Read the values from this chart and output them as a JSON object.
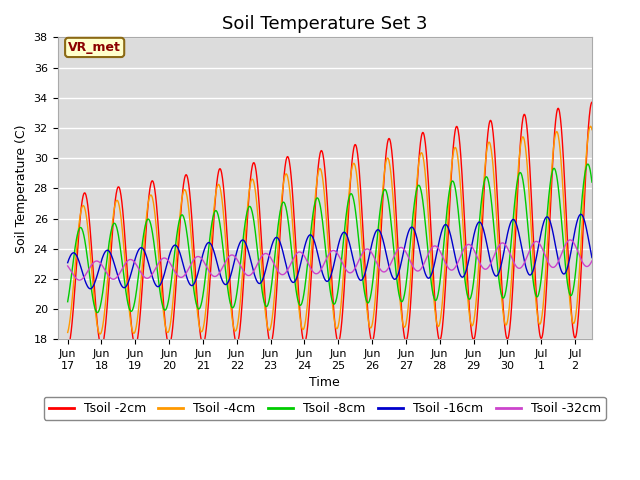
{
  "title": "Soil Temperature Set 3",
  "xlabel": "Time",
  "ylabel": "Soil Temperature (C)",
  "ylim": [
    18,
    38
  ],
  "background_color": "#dcdcdc",
  "figure_color": "#ffffff",
  "grid_color": "#ffffff",
  "annotation_text": "VR_met",
  "annotation_bg": "#ffffcc",
  "annotation_border": "#8b6914",
  "series": [
    {
      "label": "Tsoil -2cm",
      "color": "#ff0000",
      "depth": 2
    },
    {
      "label": "Tsoil -4cm",
      "color": "#ff9900",
      "depth": 4
    },
    {
      "label": "Tsoil -8cm",
      "color": "#00cc00",
      "depth": 8
    },
    {
      "label": "Tsoil -16cm",
      "color": "#0000cc",
      "depth": 16
    },
    {
      "label": "Tsoil -32cm",
      "color": "#cc44cc",
      "depth": 32
    }
  ],
  "xtick_labels": [
    "Jun\n17",
    "Jun\n18",
    "Jun\n19",
    "Jun\n20",
    "Jun\n21",
    "Jun\n22",
    "Jun\n23",
    "Jun\n24",
    "Jun\n25",
    "Jun\n26",
    "Jun\n27",
    "Jun\n28",
    "Jun\n29",
    "Jun\n30",
    "Jul\n1",
    "Jul\n2"
  ],
  "xtick_positions": [
    0,
    1,
    2,
    3,
    4,
    5,
    6,
    7,
    8,
    9,
    10,
    11,
    12,
    13,
    14,
    15
  ],
  "xlim": [
    -0.3,
    15.5
  ],
  "legend_ncol": 5,
  "title_fontsize": 13,
  "tick_fontsize": 8,
  "axis_label_fontsize": 9,
  "legend_fontsize": 9,
  "yticks": [
    18,
    20,
    22,
    24,
    26,
    28,
    30,
    32,
    34,
    36,
    38
  ],
  "depth_params": {
    "2": {
      "base_amp": 5.0,
      "amp_growth": 0.18,
      "phase": -1.57,
      "base": 22.5,
      "trend": 0.22
    },
    "4": {
      "base_amp": 4.2,
      "amp_growth": 0.15,
      "phase": -1.3,
      "base": 22.5,
      "trend": 0.2
    },
    "8": {
      "base_amp": 2.8,
      "amp_growth": 0.1,
      "phase": -0.8,
      "base": 22.5,
      "trend": 0.18
    },
    "16": {
      "base_amp": 1.2,
      "amp_growth": 0.05,
      "phase": 0.5,
      "base": 22.5,
      "trend": 0.12
    },
    "32": {
      "base_amp": 0.6,
      "amp_growth": 0.02,
      "phase": 2.5,
      "base": 22.5,
      "trend": 0.08
    }
  }
}
